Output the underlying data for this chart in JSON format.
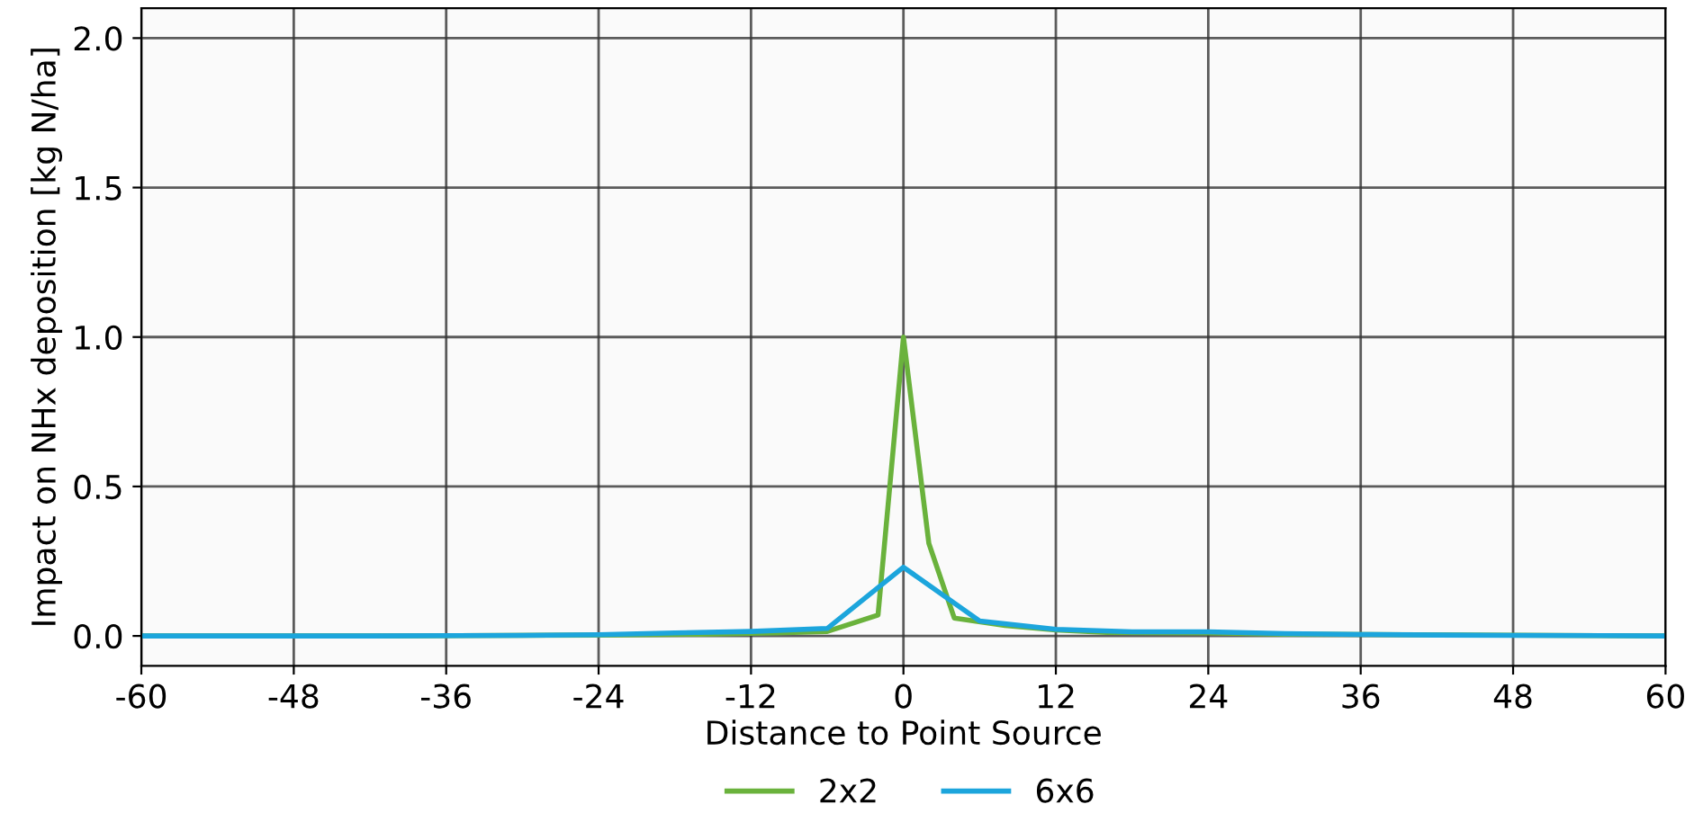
{
  "chart_data": {
    "type": "line",
    "xlabel": "Distance to Point Source",
    "ylabel": "Impact on NHx deposition [kg N/ha]",
    "xlim": [
      -60,
      60
    ],
    "xticks": [
      -60,
      -48,
      -36,
      -24,
      -12,
      0,
      12,
      24,
      36,
      48,
      60
    ],
    "ylim": [
      -0.1,
      2.1
    ],
    "yticks": [
      {
        "value": 0,
        "label": "0.0"
      },
      0.5,
      {
        "value": 1,
        "label": "1.0"
      },
      1.5,
      {
        "value": 2,
        "label": "2.0"
      }
    ],
    "grid": true,
    "legend": "bottom",
    "line_style": "solid",
    "marker": "none",
    "series": [
      {
        "name": "2x2",
        "color": "#6ab23c",
        "x": [
          -60,
          -40,
          -24,
          -16,
          -10,
          -6,
          -2,
          0,
          2,
          4,
          8,
          12,
          16,
          24,
          30,
          60
        ],
        "values": [
          0.0,
          0.0,
          0.003,
          0.006,
          0.01,
          0.015,
          0.07,
          1.0,
          0.31,
          0.06,
          0.035,
          0.02,
          0.012,
          0.01,
          0.006,
          0.0
        ]
      },
      {
        "name": "6x6",
        "color": "#1ca5dc",
        "x": [
          -60,
          -42,
          -30,
          -24,
          -18,
          -12,
          -6,
          0,
          6,
          12,
          18,
          24,
          30,
          36,
          42,
          48,
          60
        ],
        "values": [
          0.0,
          0.0,
          0.002,
          0.004,
          0.01,
          0.015,
          0.025,
          0.23,
          0.05,
          0.022,
          0.014,
          0.014,
          0.008,
          0.005,
          0.003,
          0.002,
          0.0
        ]
      }
    ]
  }
}
